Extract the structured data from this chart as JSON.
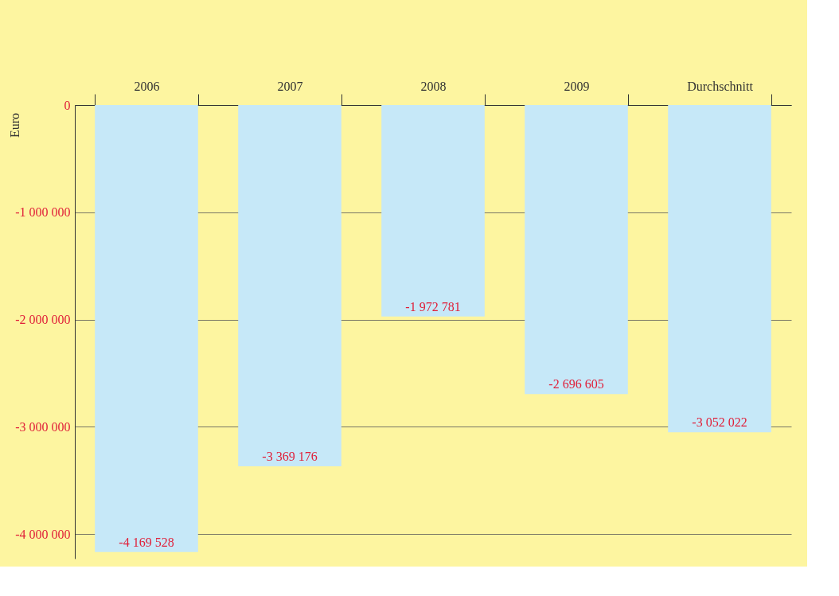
{
  "chart_data": {
    "type": "bar",
    "categories": [
      "2006",
      "2007",
      "2008",
      "2009",
      "Durchschnitt"
    ],
    "values": [
      -4169528,
      -3369176,
      -1972781,
      -2696605,
      -3052022
    ],
    "value_labels": [
      "-4 169 528",
      "-3 369 176",
      "-1 972 781",
      "-2 696 605",
      "-3 052 022"
    ],
    "color": "#c6e8f8",
    "ylabel": "Euro",
    "ylim": [
      -4230000,
      0
    ],
    "yticks": [
      0,
      {
        "value": -1000000,
        "label": "-1 000 000"
      },
      {
        "value": -2000000,
        "label": "-2 000 000"
      },
      {
        "value": -3000000,
        "label": "-3 000 000"
      },
      {
        "value": -4000000,
        "label": "-4 000 000"
      }
    ],
    "grid": "y"
  }
}
